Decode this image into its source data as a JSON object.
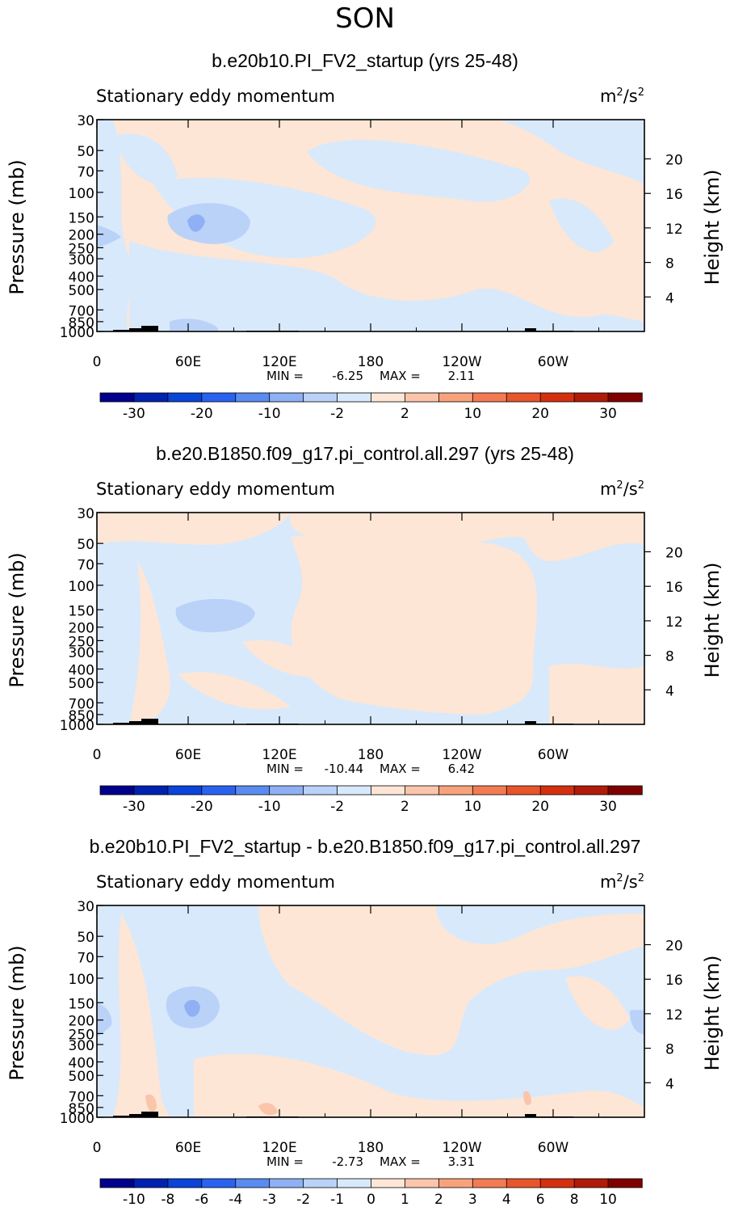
{
  "page_title": "SON",
  "chart_data": [
    {
      "type": "heatmap",
      "title": "b.e20b10.PI_FV2_startup (yrs 25-48)",
      "left_label": "Stationary eddy momentum",
      "units_base": "m",
      "units_exp1": "2",
      "units_mid": "/s",
      "units_exp2": "2",
      "ylabel": "Pressure (mb)",
      "ylabel_right": "Height (km)",
      "yticks": [
        "30",
        "50",
        "70",
        "100",
        "150",
        "200",
        "250",
        "300",
        "400",
        "500",
        "700",
        "850",
        "1000"
      ],
      "ytick_values": [
        30,
        50,
        70,
        100,
        150,
        200,
        250,
        300,
        400,
        500,
        700,
        850,
        1000
      ],
      "yticks_right": [
        "20",
        "16",
        "12",
        "8",
        "4"
      ],
      "ytick_right_values": [
        20,
        16,
        12,
        8,
        4
      ],
      "xticks": [
        "0",
        "60E",
        "120E",
        "180",
        "120W",
        "60W"
      ],
      "xtick_values": [
        0,
        60,
        120,
        180,
        240,
        300
      ],
      "xlim": [
        0,
        360
      ],
      "ylim": [
        1000,
        30
      ],
      "min_label": "MIN =",
      "min_value": "-6.25",
      "max_label": "MAX =",
      "max_value": "2.11",
      "colorbar_labels": [
        "-30",
        "-20",
        "-10",
        "-2",
        "2",
        "10",
        "20",
        "30"
      ],
      "colorbar_colors": [
        "#00008c",
        "#0022b0",
        "#0a44d8",
        "#2a62f0",
        "#5a8cf0",
        "#8fb0f4",
        "#bad2f8",
        "#d8e9fb",
        "#fde6d6",
        "#fbc5ab",
        "#f8a27c",
        "#f27b54",
        "#e8552b",
        "#d43010",
        "#b01a08",
        "#800000"
      ]
    },
    {
      "type": "heatmap",
      "title": "b.e20.B1850.f09_g17.pi_control.all.297 (yrs 25-48)",
      "left_label": "Stationary eddy momentum",
      "units_base": "m",
      "units_exp1": "2",
      "units_mid": "/s",
      "units_exp2": "2",
      "ylabel": "Pressure (mb)",
      "ylabel_right": "Height (km)",
      "yticks": [
        "30",
        "50",
        "70",
        "100",
        "150",
        "200",
        "250",
        "300",
        "400",
        "500",
        "700",
        "850",
        "1000"
      ],
      "ytick_values": [
        30,
        50,
        70,
        100,
        150,
        200,
        250,
        300,
        400,
        500,
        700,
        850,
        1000
      ],
      "yticks_right": [
        "20",
        "16",
        "12",
        "8",
        "4"
      ],
      "ytick_right_values": [
        20,
        16,
        12,
        8,
        4
      ],
      "xticks": [
        "0",
        "60E",
        "120E",
        "180",
        "120W",
        "60W"
      ],
      "xtick_values": [
        0,
        60,
        120,
        180,
        240,
        300
      ],
      "xlim": [
        0,
        360
      ],
      "ylim": [
        1000,
        30
      ],
      "min_label": "MIN =",
      "min_value": "-10.44",
      "max_label": "MAX =",
      "max_value": "6.42",
      "colorbar_labels": [
        "-30",
        "-20",
        "-10",
        "-2",
        "2",
        "10",
        "20",
        "30"
      ],
      "colorbar_colors": [
        "#00008c",
        "#0022b0",
        "#0a44d8",
        "#2a62f0",
        "#5a8cf0",
        "#8fb0f4",
        "#bad2f8",
        "#d8e9fb",
        "#fde6d6",
        "#fbc5ab",
        "#f8a27c",
        "#f27b54",
        "#e8552b",
        "#d43010",
        "#b01a08",
        "#800000"
      ]
    },
    {
      "type": "heatmap",
      "title": "b.e20b10.PI_FV2_startup - b.e20.B1850.f09_g17.pi_control.all.297",
      "left_label": "Stationary eddy momentum",
      "units_base": "m",
      "units_exp1": "2",
      "units_mid": "/s",
      "units_exp2": "2",
      "ylabel": "Pressure (mb)",
      "ylabel_right": "Height (km)",
      "yticks": [
        "30",
        "50",
        "70",
        "100",
        "150",
        "200",
        "250",
        "300",
        "400",
        "500",
        "700",
        "850",
        "1000"
      ],
      "ytick_values": [
        30,
        50,
        70,
        100,
        150,
        200,
        250,
        300,
        400,
        500,
        700,
        850,
        1000
      ],
      "yticks_right": [
        "20",
        "16",
        "12",
        "8",
        "4"
      ],
      "ytick_right_values": [
        20,
        16,
        12,
        8,
        4
      ],
      "xticks": [
        "0",
        "60E",
        "120E",
        "180",
        "120W",
        "60W"
      ],
      "xtick_values": [
        0,
        60,
        120,
        180,
        240,
        300
      ],
      "xlim": [
        0,
        360
      ],
      "ylim": [
        1000,
        30
      ],
      "min_label": "MIN =",
      "min_value": "-2.73",
      "max_label": "MAX =",
      "max_value": "3.31",
      "colorbar_labels": [
        "-10",
        "-8",
        "-6",
        "-4",
        "-3",
        "-2",
        "-1",
        "0",
        "1",
        "2",
        "3",
        "4",
        "6",
        "8",
        "10"
      ],
      "colorbar_colors": [
        "#00008c",
        "#0022b0",
        "#0a44d8",
        "#2a62f0",
        "#5a8cf0",
        "#8fb0f4",
        "#bad2f8",
        "#d8e9fb",
        "#fde6d6",
        "#fbc5ab",
        "#f8a27c",
        "#f27b54",
        "#e8552b",
        "#d43010",
        "#b01a08",
        "#800000"
      ]
    }
  ]
}
